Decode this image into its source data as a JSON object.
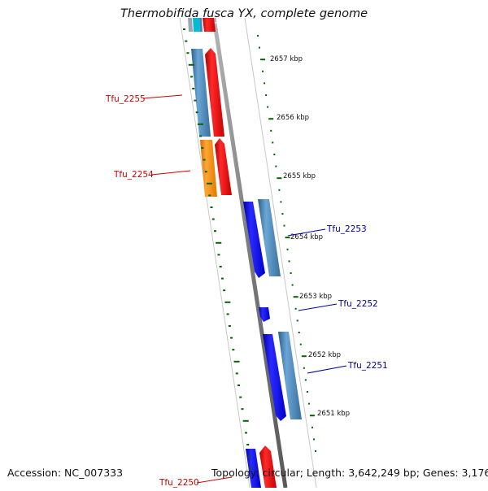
{
  "title": "Thermobifida fusca YX, complete genome",
  "accession": "Accession: NC_007333",
  "summary": "Topology: circular; Length: 3,642,249 bp; Genes: 3,176",
  "scale_labels": [
    "2657 kbp",
    "2656 kbp",
    "2655 kbp",
    "2654 kbp",
    "2653 kbp",
    "2652 kbp",
    "2651 kbp"
  ],
  "genes": [
    {
      "label": "Tfu_2255",
      "strand": "forward",
      "color": "#cc0000"
    },
    {
      "label": "Tfu_2254",
      "strand": "forward",
      "color": "#cc0000"
    },
    {
      "label": "Tfu_2253",
      "strand": "reverse",
      "color": "#000099"
    },
    {
      "label": "Tfu_2252",
      "strand": "reverse",
      "color": "#000099"
    },
    {
      "label": "Tfu_2251",
      "strand": "reverse",
      "color": "#000099"
    },
    {
      "label": "Tfu_2250",
      "strand": "forward",
      "color": "#cc0000"
    }
  ],
  "colors": {
    "forward_cds": "#ff0000",
    "reverse_cds": "#0000ff",
    "gene_blue": "#4682b4",
    "gene_orange": "#ff8c00",
    "backbone": "#808080",
    "scale_ticks": "#006400",
    "cyan_feature": "#00bcd4"
  }
}
